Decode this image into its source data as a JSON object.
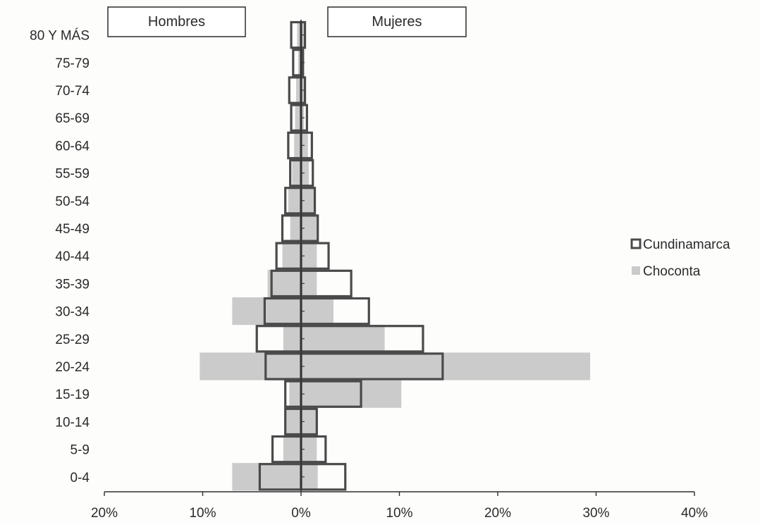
{
  "chart_data": {
    "type": "bar",
    "subtype": "population-pyramid",
    "orientation": "horizontal",
    "left_header": "Hombres",
    "right_header": "Mujeres",
    "categories": [
      "80 Y MÁS",
      "75-79",
      "70-74",
      "65-69",
      "60-64",
      "55-59",
      "50-54",
      "45-49",
      "40-44",
      "35-39",
      "30-34",
      "25-29",
      "20-24",
      "15-19",
      "10-14",
      "5-9",
      "0-4"
    ],
    "x_ticks": [
      "20%",
      "10%",
      "0%",
      "10%",
      "20%",
      "30%",
      "40%"
    ],
    "xlim": [
      -20,
      40
    ],
    "x_tick_values": [
      -20,
      -10,
      0,
      10,
      20,
      30,
      40
    ],
    "series": [
      {
        "name": "Cundinamarca",
        "style": "outline",
        "color": "#4a4a4a",
        "fill": "#ffffff",
        "hombres": [
          -1.0,
          -0.8,
          -1.2,
          -1.0,
          -1.3,
          -1.1,
          -1.6,
          -1.9,
          -2.5,
          -3.0,
          -3.7,
          -4.5,
          -3.6,
          -1.6,
          -1.6,
          -2.9,
          -4.2
        ],
        "mujeres": [
          0.4,
          0.2,
          0.4,
          0.6,
          1.1,
          1.2,
          1.4,
          1.7,
          2.8,
          5.1,
          6.9,
          12.4,
          14.4,
          6.1,
          1.6,
          2.5,
          4.5
        ]
      },
      {
        "name": "Choconta",
        "style": "filled",
        "color": "#cbcbcb",
        "hombres": [
          -0.4,
          -0.3,
          -0.5,
          -0.6,
          -0.7,
          -0.9,
          -1.3,
          -1.1,
          -1.9,
          -3.4,
          -7.0,
          -1.8,
          -10.3,
          -1.2,
          -1.5,
          -1.8,
          -7.0
        ],
        "mujeres": [
          0.3,
          0.2,
          0.4,
          0.3,
          0.7,
          0.8,
          1.3,
          1.6,
          1.6,
          1.6,
          3.3,
          8.5,
          29.4,
          10.2,
          1.6,
          1.6,
          1.7
        ]
      }
    ],
    "legend_position": "right",
    "grid": false
  }
}
